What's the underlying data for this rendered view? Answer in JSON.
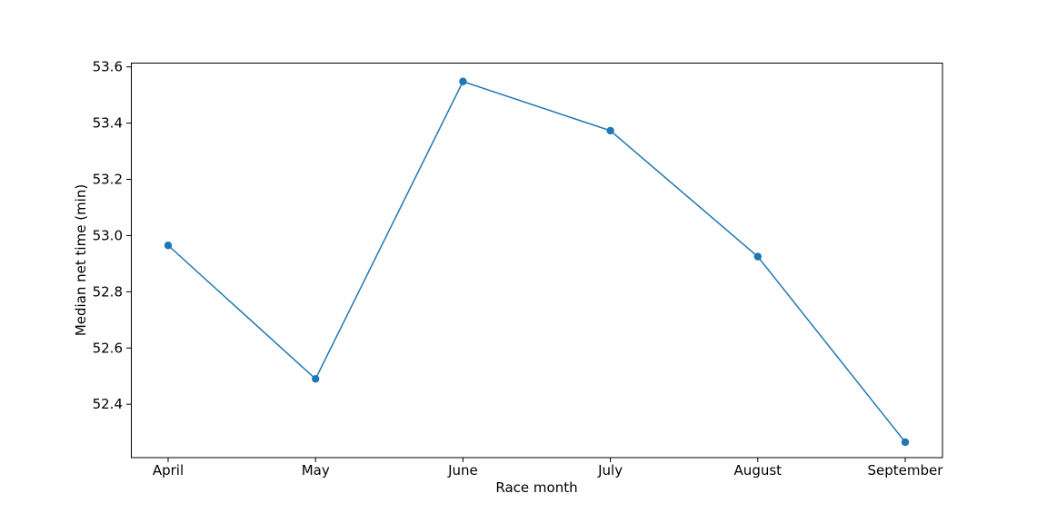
{
  "chart_data": {
    "type": "line",
    "title": "",
    "xlabel": "Race month",
    "ylabel": "Median net time (min)",
    "categories": [
      "April",
      "May",
      "June",
      "July",
      "August",
      "September"
    ],
    "series": [
      {
        "values": [
          52.965,
          52.49,
          53.548,
          53.373,
          52.925,
          52.265
        ]
      }
    ],
    "yticks": [
      "52.4",
      "52.6",
      "52.8",
      "53.0",
      "53.2",
      "53.4",
      "53.6"
    ],
    "ylim": [
      52.21,
      53.615
    ],
    "grid": false,
    "legend": "none",
    "line_color": "#1f77b4",
    "marker": "circle"
  }
}
